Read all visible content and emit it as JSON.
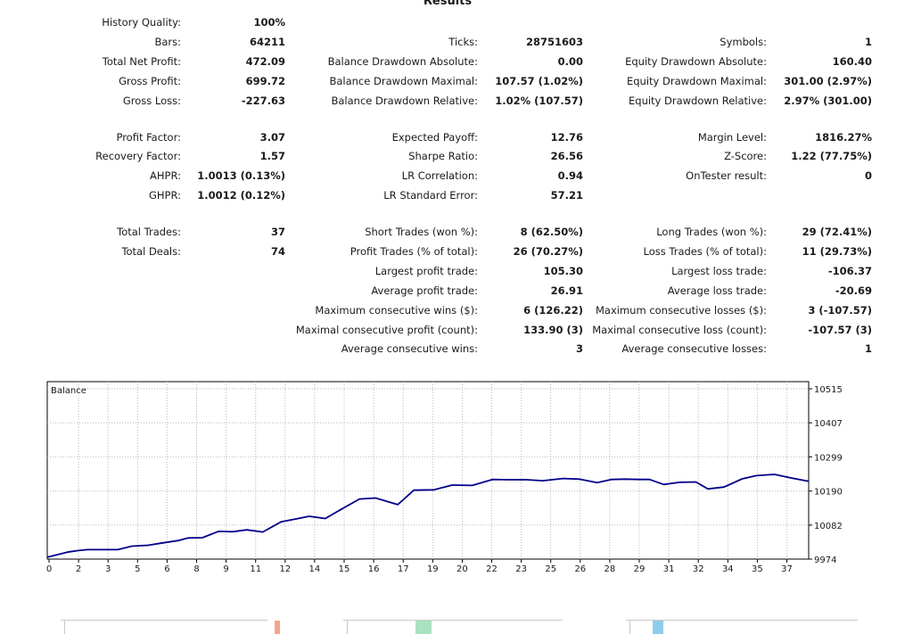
{
  "title": "Results",
  "stats": {
    "history_quality": {
      "label": "History Quality:",
      "value": "100%"
    },
    "bars": {
      "label": "Bars:",
      "value": "64211"
    },
    "ticks": {
      "label": "Ticks:",
      "value": "28751603"
    },
    "symbols": {
      "label": "Symbols:",
      "value": "1"
    },
    "total_net_profit": {
      "label": "Total Net Profit:",
      "value": "472.09"
    },
    "balance_dd_abs": {
      "label": "Balance Drawdown Absolute:",
      "value": "0.00"
    },
    "equity_dd_abs": {
      "label": "Equity Drawdown Absolute:",
      "value": "160.40"
    },
    "gross_profit": {
      "label": "Gross Profit:",
      "value": "699.72"
    },
    "balance_dd_max": {
      "label": "Balance Drawdown Maximal:",
      "value": "107.57 (1.02%)"
    },
    "equity_dd_max": {
      "label": "Equity Drawdown Maximal:",
      "value": "301.00 (2.97%)"
    },
    "gross_loss": {
      "label": "Gross Loss:",
      "value": "-227.63"
    },
    "balance_dd_rel": {
      "label": "Balance Drawdown Relative:",
      "value": "1.02% (107.57)"
    },
    "equity_dd_rel": {
      "label": "Equity Drawdown Relative:",
      "value": "2.97% (301.00)"
    },
    "profit_factor": {
      "label": "Profit Factor:",
      "value": "3.07"
    },
    "expected_payoff": {
      "label": "Expected Payoff:",
      "value": "12.76"
    },
    "margin_level": {
      "label": "Margin Level:",
      "value": "1816.27%"
    },
    "recovery_factor": {
      "label": "Recovery Factor:",
      "value": "1.57"
    },
    "sharpe_ratio": {
      "label": "Sharpe Ratio:",
      "value": "26.56"
    },
    "z_score": {
      "label": "Z-Score:",
      "value": "1.22 (77.75%)"
    },
    "ahpr": {
      "label": "AHPR:",
      "value": "1.0013 (0.13%)"
    },
    "lr_correlation": {
      "label": "LR Correlation:",
      "value": "0.94"
    },
    "ontester": {
      "label": "OnTester result:",
      "value": "0"
    },
    "ghpr": {
      "label": "GHPR:",
      "value": "1.0012 (0.12%)"
    },
    "lr_std_error": {
      "label": "LR Standard Error:",
      "value": "57.21"
    },
    "total_trades": {
      "label": "Total Trades:",
      "value": "37"
    },
    "short_trades": {
      "label": "Short Trades (won %):",
      "value": "8 (62.50%)"
    },
    "long_trades": {
      "label": "Long Trades (won %):",
      "value": "29 (72.41%)"
    },
    "total_deals": {
      "label": "Total Deals:",
      "value": "74"
    },
    "profit_trades": {
      "label": "Profit Trades (% of total):",
      "value": "26 (70.27%)"
    },
    "loss_trades": {
      "label": "Loss Trades (% of total):",
      "value": "11 (29.73%)"
    },
    "largest_profit": {
      "label": "Largest profit trade:",
      "value": "105.30"
    },
    "largest_loss": {
      "label": "Largest loss trade:",
      "value": "-106.37"
    },
    "average_profit": {
      "label": "Average profit trade:",
      "value": "26.91"
    },
    "average_loss": {
      "label": "Average loss trade:",
      "value": "-20.69"
    },
    "max_consec_wins": {
      "label": "Maximum consecutive wins ($):",
      "value": "6 (126.22)"
    },
    "max_consec_losses": {
      "label": "Maximum consecutive losses ($):",
      "value": "3 (-107.57)"
    },
    "maximal_consec_profit": {
      "label": "Maximal consecutive profit (count):",
      "value": "133.90 (3)"
    },
    "maximal_consec_loss": {
      "label": "Maximal consecutive loss (count):",
      "value": "-107.57 (3)"
    },
    "avg_consec_wins": {
      "label": "Average consecutive wins:",
      "value": "3"
    },
    "avg_consec_losses": {
      "label": "Average consecutive losses:",
      "value": "1"
    }
  },
  "chart_data": {
    "type": "line",
    "title": "Balance",
    "xlabel": "",
    "ylabel": "",
    "x_ticks": [
      "0",
      "2",
      "3",
      "5",
      "6",
      "8",
      "9",
      "11",
      "12",
      "14",
      "15",
      "16",
      "17",
      "19",
      "20",
      "22",
      "23",
      "25",
      "26",
      "28",
      "29",
      "31",
      "32",
      "34",
      "35",
      "37"
    ],
    "y_ticks": [
      9974,
      10082,
      10190,
      10299,
      10407,
      10515
    ],
    "ylim": [
      9974,
      10530
    ],
    "xlim": [
      0,
      37.8
    ],
    "line_color": "#00008b",
    "grid": true,
    "series": [
      {
        "x": [
          0,
          1,
          1.5,
          2,
          2.6,
          3.5,
          4.2,
          5,
          5.6,
          6.5,
          7,
          7.7,
          8.5,
          9.2,
          9.9,
          10.7,
          11.6,
          12.4,
          13,
          13.8,
          14.7,
          15.5,
          16.3,
          17.4,
          18.2,
          19.2,
          20.1,
          21.1,
          22.1,
          22.9,
          23.8,
          24.6,
          25.6,
          26.4,
          27.3,
          28,
          28.7,
          29.4,
          29.9,
          30.6,
          31.4,
          32.2,
          32.8,
          33.6,
          34.5,
          35.2,
          36.1,
          36.9,
          37.8
        ],
        "y": [
          9980,
          9996,
          10001,
          10004,
          10004,
          10004,
          10015,
          10018,
          10024,
          10033,
          10041,
          10042,
          10062,
          10061,
          10067,
          10060,
          10092,
          10102,
          10110,
          10103,
          10136,
          10165,
          10168,
          10147,
          10193,
          10194,
          10209,
          10208,
          10227,
          10226,
          10226,
          10223,
          10230,
          10228,
          10217,
          10227,
          10228,
          10227,
          10227,
          10211,
          10218,
          10219,
          10197,
          10203,
          10229,
          10239,
          10243,
          10232,
          10221
        ]
      }
    ]
  },
  "bottom_panels": [
    {
      "bar_color": "#f4a58a"
    },
    {
      "bar_color": "#a8e2bf"
    },
    {
      "bar_color": "#8ecdea"
    }
  ]
}
